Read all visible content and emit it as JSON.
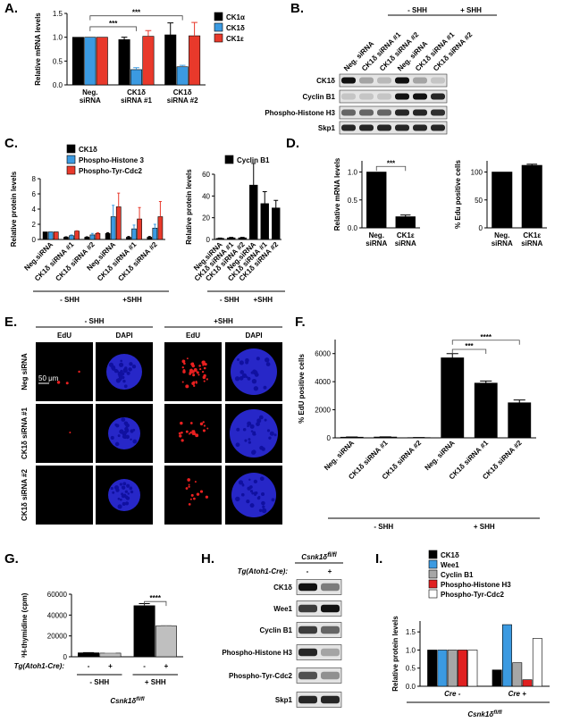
{
  "panels": [
    "A.",
    "B.",
    "C.",
    "D.",
    "E.",
    "F.",
    "G.",
    "H.",
    "I."
  ],
  "chart_data": [
    {
      "type": "bar",
      "ylabel": "Relative mRNA levels",
      "categories": [
        "Neg. siRNA",
        "CK1δ siRNA #1",
        "CK1δ siRNA #2"
      ],
      "series": [
        {
          "name": "CK1α",
          "color": "#000000",
          "values": [
            1,
            0.95,
            1.05
          ],
          "errors": [
            0,
            0.05,
            0.25
          ]
        },
        {
          "name": "CK1δ",
          "color": "#3b9ae1",
          "values": [
            1,
            0.32,
            0.38
          ],
          "errors": [
            0,
            0.04,
            0.03
          ]
        },
        {
          "name": "CK1ε",
          "color": "#e8392b",
          "values": [
            1,
            1.02,
            1.03
          ],
          "errors": [
            0,
            0.12,
            0.28
          ]
        }
      ],
      "ylim": [
        0,
        1.5
      ],
      "yticks": [
        {
          "value": 0,
          "label": "0.0"
        },
        {
          "value": 0.5,
          "label": "0.5"
        },
        {
          "value": 1,
          "label": "1.0"
        },
        {
          "value": 1.5,
          "label": "1.5"
        }
      ],
      "annotations": [
        "***",
        "***"
      ]
    },
    {
      "type": "bar",
      "ylabel": "Relative protein levels",
      "categories": [
        "Neg.siRNA",
        "CK1δ siRNA #1",
        "CK1δ siRNA #2",
        "Neg.siRNA",
        "CK1δ siRNA #1",
        "CK1δ siRNA #2"
      ],
      "series": [
        {
          "name": "CK1δ",
          "color": "#000000",
          "values": [
            1,
            0.3,
            0.3,
            0.8,
            0.3,
            0.3
          ],
          "errors": [
            0,
            0.05,
            0.05,
            0.1,
            0.1,
            0.1
          ]
        },
        {
          "name": "Phospho-Histone 3",
          "color": "#3b9ae1",
          "values": [
            1,
            0.5,
            0.6,
            3.0,
            1.4,
            1.5
          ],
          "errors": [
            0,
            0.1,
            0.2,
            1.5,
            0.5,
            0.5
          ]
        },
        {
          "name": "Phospho-Tyr-Cdc2",
          "color": "#e8392b",
          "values": [
            1,
            1.1,
            0.8,
            4.3,
            2.7,
            3.0
          ],
          "errors": [
            0,
            0.05,
            0.1,
            1.8,
            1.5,
            2.0
          ]
        }
      ],
      "ylim": [
        0,
        8
      ],
      "yticks": [
        0,
        2,
        4,
        6,
        8
      ],
      "groups": [
        "- SHH",
        "+SHH"
      ]
    },
    {
      "type": "bar",
      "ylabel": "Relative protein levels",
      "categories": [
        "Neg.siRNA",
        "CK1δ siRNA #1",
        "CK1δ siRNA #2",
        "Neg.siRNA",
        "CK1δ siRNA #1",
        "CK1δ siRNA #2"
      ],
      "series": [
        {
          "name": "Cyclin B1",
          "color": "#000000",
          "values": [
            1,
            1.5,
            1.5,
            50,
            33,
            29
          ],
          "errors": [
            0.3,
            0.5,
            0.5,
            20,
            11,
            7
          ]
        }
      ],
      "ylim": [
        0,
        60
      ],
      "yticks": [
        0,
        20,
        40,
        60
      ],
      "groups": [
        "- SHH",
        "+SHH"
      ]
    },
    {
      "type": "bar",
      "ylabel": "Relative mRNA levels",
      "categories": [
        "Neg. siRNA",
        "CK1ε siRNA"
      ],
      "color": "#000000",
      "values": [
        1,
        0.2
      ],
      "errors": [
        0,
        0.03
      ],
      "ylim": [
        0,
        1.2
      ],
      "yticks": [
        {
          "value": 0,
          "label": "0.0"
        },
        {
          "value": 0.5,
          "label": "0.5"
        },
        {
          "value": 1,
          "label": "1.0"
        }
      ],
      "annotations": [
        "***"
      ]
    },
    {
      "type": "bar",
      "ylabel": "% Edu positive cells",
      "categories": [
        "Neg. siRNA",
        "CK1ε siRNA"
      ],
      "color": "#000000",
      "values": [
        100,
        112
      ],
      "errors": [
        0,
        2
      ],
      "ylim": [
        0,
        120
      ],
      "yticks": [
        0,
        50,
        100
      ]
    },
    {
      "type": "bar",
      "ylabel": "% EdU positive cells",
      "categories": [
        "Neg. siRNA",
        "CK1δ siRNA #1",
        "CK1δ siRNA #2",
        "Neg. siRNA",
        "CK1δ siRNA #1",
        "CK1δ siRNA #2"
      ],
      "color": "#000000",
      "values": [
        50,
        60,
        20,
        5700,
        3900,
        2500
      ],
      "errors": [
        10,
        10,
        5,
        300,
        150,
        200
      ],
      "ylim": [
        0,
        7000
      ],
      "yticks": [
        0,
        2000,
        4000,
        6000
      ],
      "groups": [
        "- SHH",
        "+ SHH"
      ],
      "annotations": [
        "***",
        "****"
      ]
    },
    {
      "type": "bar",
      "ylabel": "³H-thymidine (cpm)",
      "categories": [
        "- SHH",
        "+ SHH"
      ],
      "series_label": "Tg(Atoh1-Cre):",
      "series": [
        {
          "name": "-",
          "color": "#000000",
          "values": [
            3800,
            49000
          ],
          "errors": [
            200,
            2000
          ]
        },
        {
          "name": "+",
          "color": "#bfbfbf",
          "values": [
            3500,
            29500
          ],
          "errors": [
            200,
            600
          ]
        }
      ],
      "ylim": [
        0,
        60000
      ],
      "yticks": [
        0,
        20000,
        40000,
        60000
      ],
      "xlabel": {
        "text": "Csnk1δ",
        "sup": "fl/fl"
      },
      "annotations": [
        "****"
      ]
    },
    {
      "type": "bar",
      "ylabel": "Relative protein levels",
      "categories": [
        "Cre -",
        "Cre +"
      ],
      "series": [
        {
          "name": "CK1δ",
          "color": "#000000",
          "values": [
            1,
            0.45
          ]
        },
        {
          "name": "Wee1",
          "color": "#3b9ae1",
          "values": [
            1,
            1.7
          ]
        },
        {
          "name": "Cyclin B1",
          "color": "#a6a6a6",
          "values": [
            1,
            0.65
          ]
        },
        {
          "name": "Phospho-Histone H3",
          "color": "#e02020",
          "values": [
            1,
            0.18
          ]
        },
        {
          "name": "Phospho-Tyr-Cdc2",
          "color": "#ffffff",
          "values": [
            1,
            1.32
          ]
        }
      ],
      "ylim": [
        0,
        1.8
      ],
      "yticks": [
        {
          "value": 0,
          "label": "0.0"
        },
        {
          "value": 0.5,
          "label": "0.5"
        },
        {
          "value": 1,
          "label": "1.0"
        },
        {
          "value": 1.5,
          "label": "1.5"
        }
      ],
      "xlabel": {
        "text": "Csnk1δ",
        "sup": "fl/fl"
      }
    }
  ],
  "blot_b": {
    "groups": [
      "- SHH",
      "+ SHH"
    ],
    "lanes": [
      "Neg. siRNA",
      "CK1δ siRNA #1",
      "CK1δ siRNA #2",
      "Neg. siRNA",
      "CK1δ siRNA #1",
      "CK1δ siRNA #2"
    ],
    "rows": [
      "CK1δ",
      "Cyclin B1",
      "Phospho-Histone H3",
      "Skp1"
    ]
  },
  "images_e": {
    "groups": [
      "- SHH",
      "+SHH"
    ],
    "columns": [
      "EdU",
      "DAPI",
      "EdU",
      "DAPI"
    ],
    "rows": [
      "Neg siRNA",
      "CK1δ siRNA #1",
      "CK1δ siRNA #2"
    ],
    "scale_bar": "50 μm"
  },
  "blot_h": {
    "header": {
      "text": "Csnk1δ",
      "sup": "fl/fl"
    },
    "lane_label": "Tg(Atoh1-Cre):",
    "lanes": [
      "-",
      "+"
    ],
    "rows": [
      "CK1δ",
      "Wee1",
      "Cyclin B1",
      "Phospho-Histone H3",
      "Phospho-Tyr-Cdc2",
      "Skp1"
    ]
  }
}
